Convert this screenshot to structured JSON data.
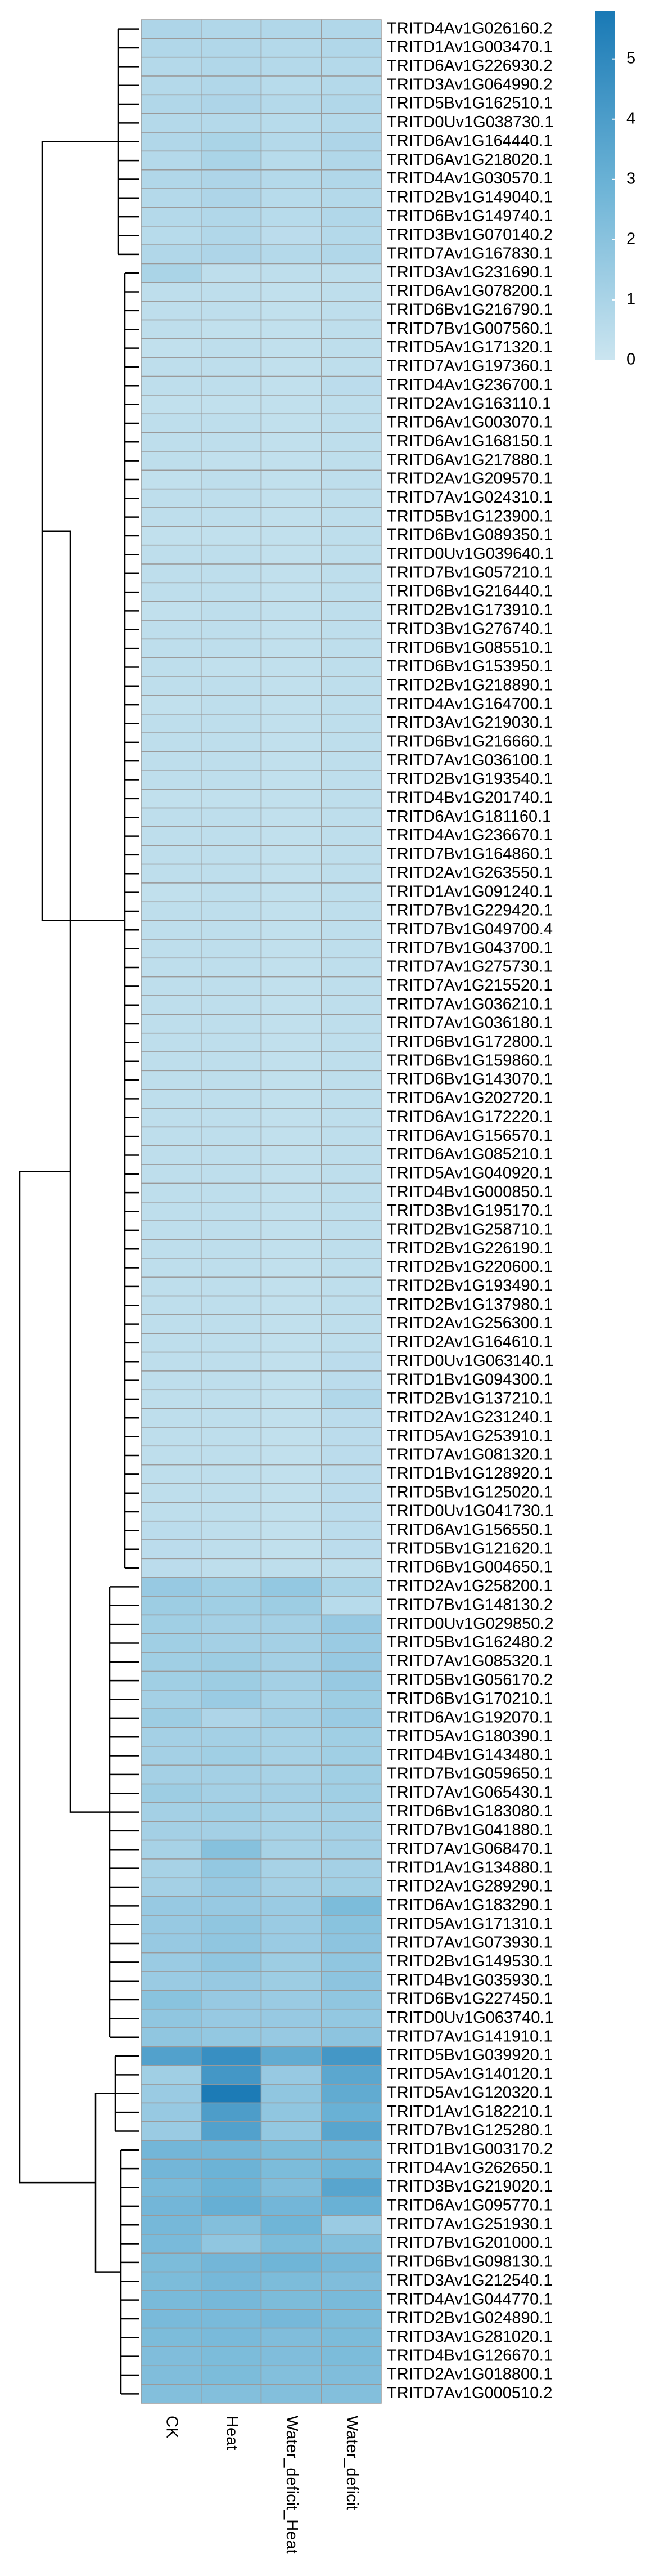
{
  "chart_data": {
    "type": "heatmap",
    "columns": [
      "CK",
      "Heat",
      "Water_deficit_Heat",
      "Water_deficit"
    ],
    "rows": [
      "TRITD4Av1G026160.2",
      "TRITD1Av1G003470.1",
      "TRITD6Av1G226930.2",
      "TRITD3Av1G064990.2",
      "TRITD5Bv1G162510.1",
      "TRITD0Uv1G038730.1",
      "TRITD6Av1G164440.1",
      "TRITD6Av1G218020.1",
      "TRITD4Av1G030570.1",
      "TRITD2Bv1G149040.1",
      "TRITD6Bv1G149740.1",
      "TRITD3Bv1G070140.2",
      "TRITD7Av1G167830.1",
      "TRITD3Av1G231690.1",
      "TRITD6Av1G078200.1",
      "TRITD6Bv1G216790.1",
      "TRITD7Bv1G007560.1",
      "TRITD5Av1G171320.1",
      "TRITD7Av1G197360.1",
      "TRITD4Av1G236700.1",
      "TRITD2Av1G163110.1",
      "TRITD6Av1G003070.1",
      "TRITD6Av1G168150.1",
      "TRITD6Av1G217880.1",
      "TRITD2Av1G209570.1",
      "TRITD7Av1G024310.1",
      "TRITD5Bv1G123900.1",
      "TRITD6Bv1G089350.1",
      "TRITD0Uv1G039640.1",
      "TRITD7Bv1G057210.1",
      "TRITD6Bv1G216440.1",
      "TRITD2Bv1G173910.1",
      "TRITD3Bv1G276740.1",
      "TRITD6Bv1G085510.1",
      "TRITD6Bv1G153950.1",
      "TRITD2Bv1G218890.1",
      "TRITD4Av1G164700.1",
      "TRITD3Av1G219030.1",
      "TRITD6Bv1G216660.1",
      "TRITD7Av1G036100.1",
      "TRITD2Bv1G193540.1",
      "TRITD4Bv1G201740.1",
      "TRITD6Av1G181160.1",
      "TRITD4Av1G236670.1",
      "TRITD7Bv1G164860.1",
      "TRITD2Av1G263550.1",
      "TRITD1Av1G091240.1",
      "TRITD7Bv1G229420.1",
      "TRITD7Bv1G049700.4",
      "TRITD7Bv1G043700.1",
      "TRITD7Av1G275730.1",
      "TRITD7Av1G215520.1",
      "TRITD7Av1G036210.1",
      "TRITD7Av1G036180.1",
      "TRITD6Bv1G172800.1",
      "TRITD6Bv1G159860.1",
      "TRITD6Bv1G143070.1",
      "TRITD6Av1G202720.1",
      "TRITD6Av1G172220.1",
      "TRITD6Av1G156570.1",
      "TRITD6Av1G085210.1",
      "TRITD5Av1G040920.1",
      "TRITD4Bv1G000850.1",
      "TRITD3Bv1G195170.1",
      "TRITD2Bv1G258710.1",
      "TRITD2Bv1G226190.1",
      "TRITD2Bv1G220600.1",
      "TRITD2Bv1G193490.1",
      "TRITD2Bv1G137980.1",
      "TRITD2Av1G256300.1",
      "TRITD2Av1G164610.1",
      "TRITD0Uv1G063140.1",
      "TRITD1Bv1G094300.1",
      "TRITD2Bv1G137210.1",
      "TRITD2Av1G231240.1",
      "TRITD5Av1G253910.1",
      "TRITD7Av1G081320.1",
      "TRITD1Bv1G128920.1",
      "TRITD5Bv1G125020.1",
      "TRITD0Uv1G041730.1",
      "TRITD6Av1G156550.1",
      "TRITD5Bv1G121620.1",
      "TRITD6Bv1G004650.1",
      "TRITD2Av1G258200.1",
      "TRITD7Bv1G148130.2",
      "TRITD0Uv1G029850.2",
      "TRITD5Bv1G162480.2",
      "TRITD7Av1G085320.1",
      "TRITD5Bv1G056170.2",
      "TRITD6Bv1G170210.1",
      "TRITD6Av1G192070.1",
      "TRITD5Av1G180390.1",
      "TRITD4Bv1G143480.1",
      "TRITD7Bv1G059650.1",
      "TRITD7Av1G065430.1",
      "TRITD6Bv1G183080.1",
      "TRITD7Bv1G041880.1",
      "TRITD7Av1G068470.1",
      "TRITD1Av1G134880.1",
      "TRITD2Av1G289290.1",
      "TRITD6Av1G183290.1",
      "TRITD5Av1G171310.1",
      "TRITD7Av1G073930.1",
      "TRITD2Bv1G149530.1",
      "TRITD4Bv1G035930.1",
      "TRITD6Bv1G227450.1",
      "TRITD0Uv1G063740.1",
      "TRITD7Av1G141910.1",
      "TRITD5Bv1G039920.1",
      "TRITD5Av1G140120.1",
      "TRITD5Av1G120320.1",
      "TRITD1Av1G182210.1",
      "TRITD7Bv1G125280.1",
      "TRITD1Bv1G003170.2",
      "TRITD4Av1G262650.1",
      "TRITD3Bv1G219020.1",
      "TRITD6Av1G095770.1",
      "TRITD7Av1G251930.1",
      "TRITD7Bv1G201000.1",
      "TRITD6Bv1G098130.1",
      "TRITD3Av1G212540.1",
      "TRITD4Av1G044770.1",
      "TRITD2Bv1G024890.1",
      "TRITD3Av1G281020.1",
      "TRITD4Bv1G126670.1",
      "TRITD2Av1G018800.1",
      "TRITD7Av1G000510.2"
    ],
    "values": [
      [
        0.9,
        0.8,
        0.8,
        0.8
      ],
      [
        0.8,
        0.8,
        0.7,
        0.8
      ],
      [
        0.7,
        0.8,
        0.7,
        0.7
      ],
      [
        0.7,
        0.8,
        0.6,
        0.7
      ],
      [
        0.8,
        0.9,
        0.7,
        0.8
      ],
      [
        0.7,
        0.7,
        0.6,
        0.7
      ],
      [
        0.8,
        1.0,
        0.7,
        0.9
      ],
      [
        0.7,
        1.0,
        0.6,
        0.8
      ],
      [
        0.8,
        0.9,
        0.7,
        0.8
      ],
      [
        0.7,
        0.9,
        0.6,
        0.7
      ],
      [
        0.7,
        0.8,
        0.6,
        0.8
      ],
      [
        0.6,
        0.8,
        0.5,
        0.7
      ],
      [
        0.8,
        0.9,
        0.7,
        0.8
      ],
      [
        1.0,
        0.4,
        0.4,
        0.4
      ],
      [
        0.4,
        0.4,
        0.3,
        0.4
      ],
      [
        0.4,
        0.4,
        0.3,
        0.4
      ],
      [
        0.4,
        0.3,
        0.3,
        0.4
      ],
      [
        0.3,
        0.4,
        0.3,
        0.4
      ],
      [
        0.4,
        0.4,
        0.3,
        0.4
      ],
      [
        0.4,
        0.4,
        0.3,
        0.5
      ],
      [
        0.3,
        0.3,
        0.3,
        0.4
      ],
      [
        0.4,
        0.4,
        0.3,
        0.4
      ],
      [
        0.4,
        0.4,
        0.3,
        0.4
      ],
      [
        0.4,
        0.3,
        0.3,
        0.4
      ],
      [
        0.3,
        0.4,
        0.3,
        0.4
      ],
      [
        0.4,
        0.4,
        0.3,
        0.4
      ],
      [
        0.4,
        0.4,
        0.3,
        0.4
      ],
      [
        0.3,
        0.3,
        0.3,
        0.4
      ],
      [
        0.4,
        0.4,
        0.3,
        0.4
      ],
      [
        0.4,
        0.4,
        0.3,
        0.4
      ],
      [
        0.4,
        0.4,
        0.3,
        0.4
      ],
      [
        0.3,
        0.4,
        0.3,
        0.4
      ],
      [
        0.4,
        0.4,
        0.3,
        0.4
      ],
      [
        0.4,
        0.4,
        0.3,
        0.4
      ],
      [
        0.4,
        0.3,
        0.3,
        0.4
      ],
      [
        0.4,
        0.4,
        0.3,
        0.4
      ],
      [
        0.3,
        0.4,
        0.3,
        0.4
      ],
      [
        0.4,
        0.4,
        0.3,
        0.4
      ],
      [
        0.4,
        0.4,
        0.3,
        0.4
      ],
      [
        0.4,
        0.4,
        0.3,
        0.4
      ],
      [
        0.4,
        0.4,
        0.3,
        0.4
      ],
      [
        0.3,
        0.3,
        0.3,
        0.4
      ],
      [
        0.4,
        0.4,
        0.3,
        0.4
      ],
      [
        0.4,
        0.4,
        0.3,
        0.4
      ],
      [
        0.4,
        0.4,
        0.3,
        0.4
      ],
      [
        0.4,
        0.4,
        0.3,
        0.4
      ],
      [
        0.3,
        0.4,
        0.3,
        0.4
      ],
      [
        0.4,
        0.4,
        0.3,
        0.4
      ],
      [
        0.4,
        0.4,
        0.3,
        0.4
      ],
      [
        0.4,
        0.4,
        0.3,
        0.4
      ],
      [
        0.4,
        0.4,
        0.3,
        0.4
      ],
      [
        0.4,
        0.4,
        0.3,
        0.4
      ],
      [
        0.4,
        0.4,
        0.3,
        0.4
      ],
      [
        0.4,
        0.4,
        0.3,
        0.4
      ],
      [
        0.4,
        0.4,
        0.3,
        0.4
      ],
      [
        0.4,
        0.4,
        0.3,
        0.4
      ],
      [
        0.4,
        0.4,
        0.3,
        0.4
      ],
      [
        0.4,
        0.4,
        0.3,
        0.4
      ],
      [
        0.4,
        0.4,
        0.3,
        0.4
      ],
      [
        0.4,
        0.4,
        0.3,
        0.4
      ],
      [
        0.4,
        0.4,
        0.3,
        0.4
      ],
      [
        0.4,
        0.4,
        0.3,
        0.4
      ],
      [
        0.4,
        0.4,
        0.3,
        0.4
      ],
      [
        0.4,
        0.4,
        0.3,
        0.4
      ],
      [
        0.4,
        0.4,
        0.3,
        0.4
      ],
      [
        0.4,
        0.4,
        0.3,
        0.4
      ],
      [
        0.4,
        0.4,
        0.3,
        0.4
      ],
      [
        0.4,
        0.4,
        0.3,
        0.4
      ],
      [
        0.4,
        0.4,
        0.3,
        0.4
      ],
      [
        0.4,
        0.4,
        0.3,
        0.4
      ],
      [
        0.4,
        0.4,
        0.3,
        0.4
      ],
      [
        0.4,
        0.4,
        0.3,
        0.5
      ],
      [
        0.4,
        0.4,
        0.3,
        0.5
      ],
      [
        0.4,
        0.4,
        0.3,
        0.8
      ],
      [
        0.4,
        0.4,
        0.3,
        0.5
      ],
      [
        0.4,
        0.4,
        0.3,
        0.5
      ],
      [
        0.4,
        0.4,
        0.3,
        0.5
      ],
      [
        0.4,
        0.4,
        0.3,
        0.5
      ],
      [
        0.4,
        0.4,
        0.3,
        0.5
      ],
      [
        0.4,
        0.4,
        0.3,
        0.5
      ],
      [
        0.5,
        0.4,
        0.3,
        0.5
      ],
      [
        0.5,
        0.4,
        0.3,
        0.5
      ],
      [
        0.5,
        0.4,
        0.4,
        0.4
      ],
      [
        1.6,
        1.3,
        1.7,
        1.0
      ],
      [
        1.4,
        1.3,
        1.4,
        0.6
      ],
      [
        1.3,
        1.2,
        1.2,
        1.6
      ],
      [
        1.3,
        1.2,
        1.2,
        1.5
      ],
      [
        1.3,
        1.4,
        1.2,
        1.6
      ],
      [
        1.3,
        1.4,
        1.2,
        1.6
      ],
      [
        1.2,
        1.5,
        1.1,
        1.4
      ],
      [
        1.4,
        0.9,
        1.2,
        1.5
      ],
      [
        1.2,
        1.2,
        1.1,
        1.3
      ],
      [
        1.2,
        1.3,
        1.1,
        1.3
      ],
      [
        1.2,
        1.2,
        1.1,
        1.3
      ],
      [
        1.4,
        1.2,
        1.2,
        1.3
      ],
      [
        1.2,
        1.3,
        1.1,
        1.2
      ],
      [
        1.2,
        1.2,
        1.1,
        1.2
      ],
      [
        1.1,
        2.1,
        1.1,
        1.2
      ],
      [
        1.1,
        1.7,
        1.1,
        1.2
      ],
      [
        1.2,
        1.6,
        1.2,
        1.3
      ],
      [
        1.6,
        1.6,
        1.5,
        2.4
      ],
      [
        1.6,
        1.8,
        1.5,
        2.0
      ],
      [
        1.6,
        1.8,
        1.5,
        1.9
      ],
      [
        1.5,
        1.8,
        1.4,
        1.8
      ],
      [
        1.5,
        1.6,
        1.4,
        1.9
      ],
      [
        2.0,
        1.6,
        1.5,
        1.8
      ],
      [
        1.8,
        1.6,
        1.6,
        1.7
      ],
      [
        1.8,
        1.7,
        1.6,
        1.9
      ],
      [
        3.8,
        4.7,
        3.3,
        4.3
      ],
      [
        1.3,
        4.3,
        1.6,
        3.5
      ],
      [
        1.5,
        5.7,
        1.8,
        3.3
      ],
      [
        1.6,
        4.0,
        1.8,
        3.0
      ],
      [
        1.5,
        3.8,
        1.7,
        3.6
      ],
      [
        2.7,
        2.7,
        2.4,
        2.6
      ],
      [
        2.7,
        2.9,
        2.4,
        2.8
      ],
      [
        2.5,
        2.9,
        2.3,
        3.6
      ],
      [
        2.7,
        3.1,
        2.7,
        3.0
      ],
      [
        2.6,
        2.2,
        2.8,
        1.5
      ],
      [
        2.5,
        1.8,
        2.4,
        2.2
      ],
      [
        2.4,
        2.7,
        2.8,
        2.6
      ],
      [
        2.4,
        2.6,
        2.4,
        2.3
      ],
      [
        2.5,
        2.6,
        2.4,
        2.5
      ],
      [
        2.5,
        2.5,
        2.6,
        2.4
      ],
      [
        2.4,
        2.5,
        2.3,
        2.4
      ],
      [
        2.3,
        2.4,
        2.3,
        2.4
      ],
      [
        2.3,
        2.4,
        2.2,
        2.3
      ],
      [
        2.2,
        2.2,
        2.2,
        2.2
      ]
    ],
    "colors": [
      "#cbe5f0",
      "#6cb3d6",
      "#1979b5"
    ],
    "colorbar_lim": [
      0,
      5.8
    ],
    "colorbar_ticks": [
      0,
      1,
      2,
      3,
      4,
      5
    ]
  }
}
